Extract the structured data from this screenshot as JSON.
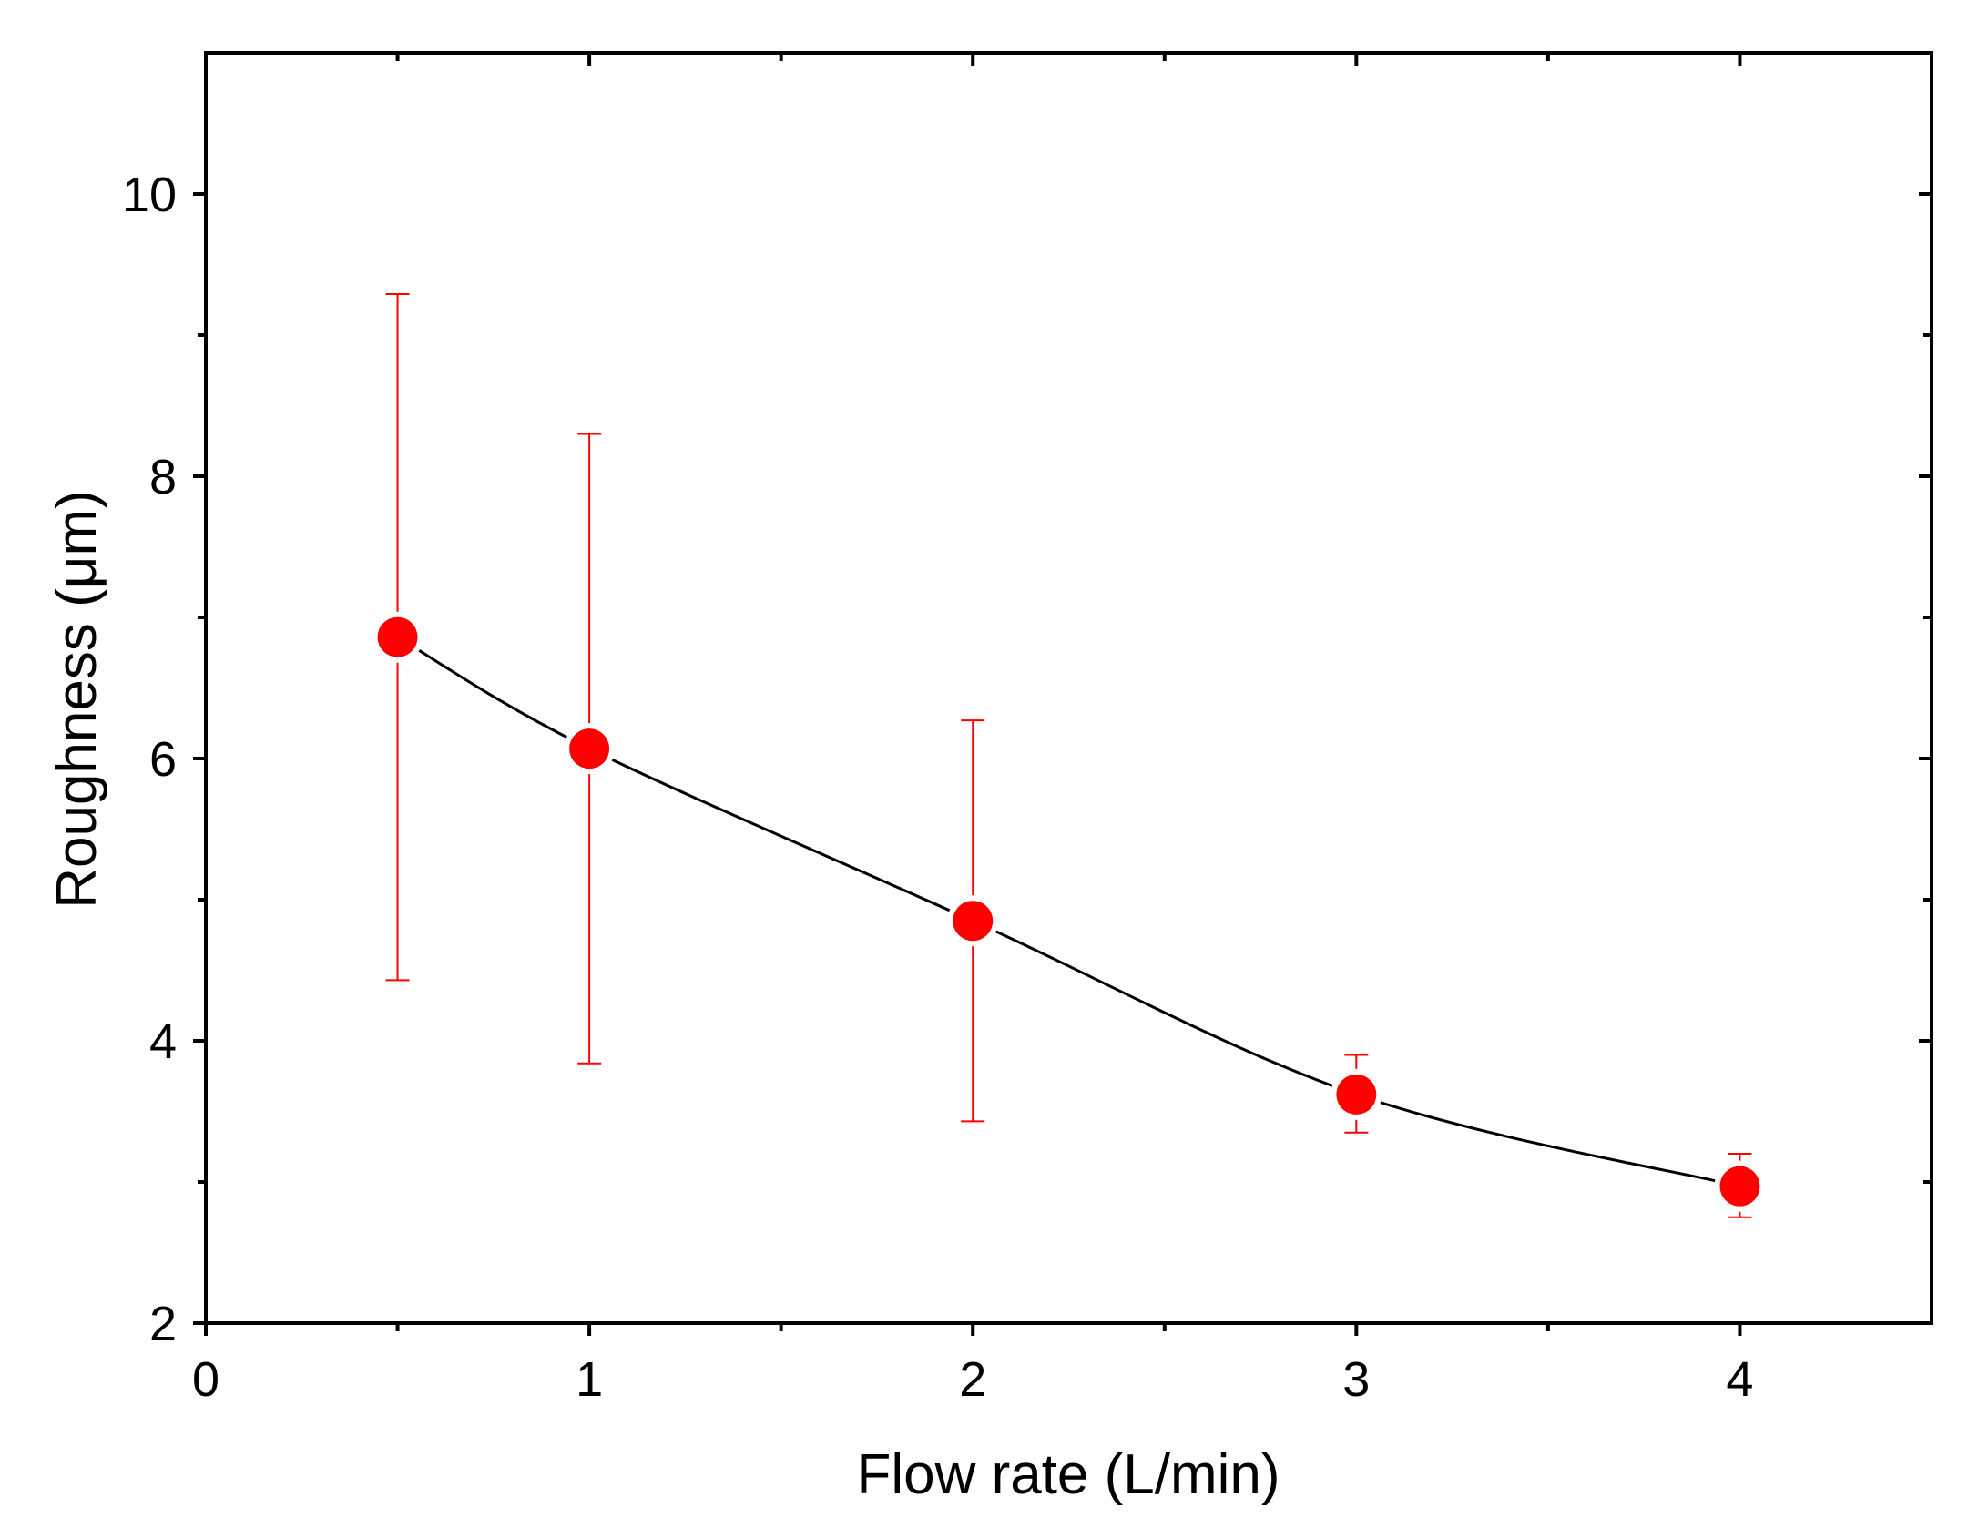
{
  "chart_data": {
    "type": "scatter",
    "title": "",
    "xlabel": "Flow rate (L/min)",
    "ylabel": "Roughness (μm)",
    "xlim": [
      0,
      4.5
    ],
    "ylim": [
      2,
      11
    ],
    "x_ticks": [
      0,
      1,
      2,
      3,
      4
    ],
    "x_minor_ticks": [
      0.5,
      1.5,
      2.5,
      3.5
    ],
    "x_tick_labels": [
      "0",
      "1",
      "2",
      "3",
      "4"
    ],
    "y_ticks": [
      2,
      4,
      6,
      8,
      10
    ],
    "y_minor_ticks": [
      3,
      5,
      7,
      9
    ],
    "y_tick_labels": [
      "2",
      "4",
      "6",
      "8",
      "10"
    ],
    "grid": false,
    "series": [
      {
        "name": "Roughness",
        "x": [
          0.5,
          1,
          2,
          3,
          4
        ],
        "y": [
          6.86,
          6.07,
          4.85,
          3.62,
          2.97
        ],
        "error_lower": [
          4.43,
          3.84,
          3.43,
          3.35,
          2.75
        ],
        "error_upper": [
          9.29,
          8.3,
          6.27,
          3.9,
          3.2
        ],
        "marker_color": "#ff0000",
        "errorbar_color": "#ff0000",
        "line_color": "#000000"
      }
    ]
  }
}
